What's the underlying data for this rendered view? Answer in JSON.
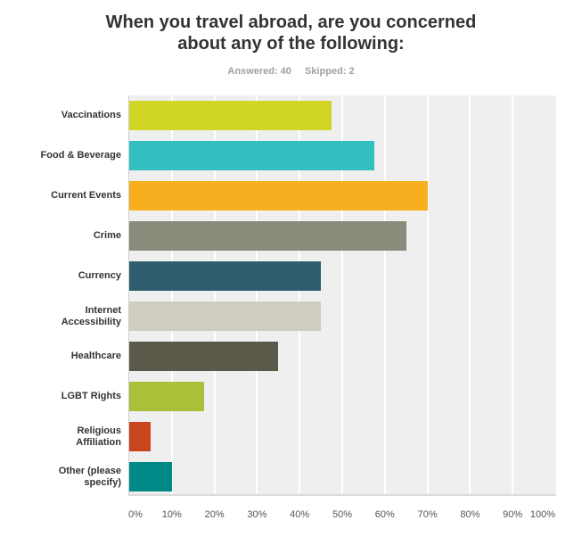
{
  "title_lines": [
    "When you travel abroad, are you concerned",
    "about any of the following:"
  ],
  "answered_label": "Answered: 40",
  "skipped_label": "Skipped: 2",
  "chart_data": {
    "type": "bar",
    "orientation": "horizontal",
    "title": "When you travel abroad, are you concerned about any of the following:",
    "subtitle": "Answered: 40 Skipped: 2",
    "categories": [
      "Vaccinations",
      "Food & Beverage",
      "Current Events",
      "Crime",
      "Currency",
      "Internet Accessibility",
      "Healthcare",
      "LGBT Rights",
      "Religious Affiliation",
      "Other (please specify)"
    ],
    "values": [
      47.5,
      57.5,
      70,
      65,
      45,
      45,
      35,
      17.5,
      5,
      10
    ],
    "colors": [
      "#D1D626",
      "#33BEC0",
      "#F7AF1F",
      "#8A8B7B",
      "#2F5F6E",
      "#CFCDC0",
      "#5B594A",
      "#ABBF38",
      "#C9451E",
      "#008A87"
    ],
    "xlabel": "",
    "ylabel": "",
    "xlim": [
      0,
      100
    ],
    "x_ticks": [
      "0%",
      "10%",
      "20%",
      "30%",
      "40%",
      "50%",
      "60%",
      "70%",
      "80%",
      "90%",
      "100%"
    ],
    "grid": true,
    "legend": "none"
  },
  "category_label_lines": [
    [
      "Vaccinations"
    ],
    [
      "Food & Beverage"
    ],
    [
      "Current Events"
    ],
    [
      "Crime"
    ],
    [
      "Currency"
    ],
    [
      "Internet",
      "Accessibility"
    ],
    [
      "Healthcare"
    ],
    [
      "LGBT Rights"
    ],
    [
      "Religious",
      "Affiliation"
    ],
    [
      "Other (please",
      "specify)"
    ]
  ]
}
